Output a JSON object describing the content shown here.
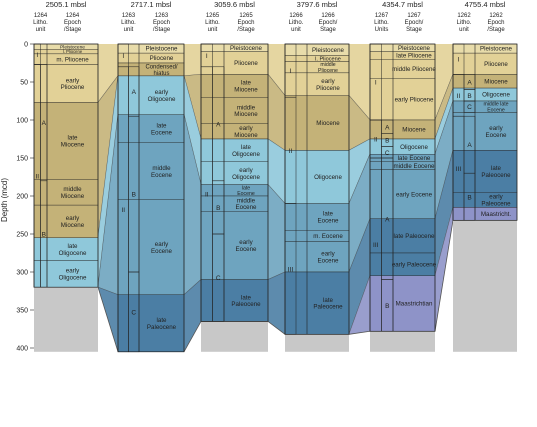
{
  "axis": {
    "label": "Depth (mcd)",
    "ticks": [
      0,
      50,
      100,
      150,
      200,
      250,
      300,
      350,
      400
    ],
    "range": [
      0,
      400
    ]
  },
  "colors": {
    "pleistocene": "#e8dcaa",
    "pliocene": "#e2d197",
    "miocene": "#c4b278",
    "oligocene": "#8fc8da",
    "eocene": "#6ea4bf",
    "paleocene": "#4b7ea4",
    "maastrichtian": "#8e93c8",
    "basement": "#c8c8c8",
    "outline": "#222222"
  },
  "sites": [
    {
      "id": "1264",
      "depth_title": "2505.1 mbsl",
      "col1_head": [
        "1264",
        "Litho.",
        "unit"
      ],
      "col2_head": [
        "1264",
        "Epoch",
        "/Stage"
      ],
      "total": 320,
      "basement_to": 405,
      "units": [
        {
          "label": "I",
          "top": 0,
          "bottom": 27,
          "level": 1
        },
        {
          "label": "II",
          "top": 27,
          "bottom": 320,
          "level": 1
        },
        {
          "label": "A",
          "top": 27,
          "bottom": 180,
          "level": 2
        },
        {
          "label": "B",
          "top": 180,
          "bottom": 320,
          "level": 2
        }
      ],
      "stages": [
        {
          "label": [
            "Pleistocene"
          ],
          "top": 0,
          "bottom": 7,
          "c": "pleistocene"
        },
        {
          "label": [
            "l. Pliocene"
          ],
          "top": 7,
          "bottom": 13,
          "c": "pliocene"
        },
        {
          "label": [
            "m. Pliocene"
          ],
          "top": 13,
          "bottom": 27,
          "c": "pliocene"
        },
        {
          "label": [
            "early",
            "Pliocene"
          ],
          "top": 27,
          "bottom": 77,
          "c": "pliocene"
        },
        {
          "label": [
            "late",
            "Miocene"
          ],
          "top": 77,
          "bottom": 178,
          "c": "miocene"
        },
        {
          "label": [
            "middle",
            "Miocene"
          ],
          "top": 178,
          "bottom": 212,
          "c": "miocene"
        },
        {
          "label": [
            "early",
            "Miocene"
          ],
          "top": 212,
          "bottom": 255,
          "c": "miocene"
        },
        {
          "label": [
            "late",
            "Oligocene"
          ],
          "top": 255,
          "bottom": 285,
          "c": "oligocene"
        },
        {
          "label": [
            "early",
            "Oligocene"
          ],
          "top": 285,
          "bottom": 320,
          "c": "oligocene"
        }
      ]
    },
    {
      "id": "1263",
      "depth_title": "2717.1 mbsl",
      "col1_head": [
        "1263",
        "Litho.",
        "unit"
      ],
      "col2_head": [
        "1263",
        "Epoch",
        "/Stage"
      ],
      "total": 405,
      "basement_to": 405,
      "units": [
        {
          "label": "I",
          "top": 0,
          "bottom": 30,
          "level": 1
        },
        {
          "label": "II",
          "top": 30,
          "bottom": 405,
          "level": 1
        },
        {
          "label": "A",
          "top": 30,
          "bottom": 95,
          "level": 2
        },
        {
          "label": "B",
          "top": 95,
          "bottom": 300,
          "level": 2
        },
        {
          "label": "C",
          "top": 300,
          "bottom": 405,
          "level": 2
        }
      ],
      "stages": [
        {
          "label": [
            "Pleistocene"
          ],
          "top": 0,
          "bottom": 12,
          "c": "pleistocene"
        },
        {
          "label": [
            "Pliocene"
          ],
          "top": 12,
          "bottom": 25,
          "c": "pliocene"
        },
        {
          "label": [
            "Condensed/",
            "hiatus"
          ],
          "top": 25,
          "bottom": 42,
          "c": "miocene"
        },
        {
          "label": [
            "early",
            "Oligocene"
          ],
          "top": 42,
          "bottom": 93,
          "c": "oligocene"
        },
        {
          "label": [
            "late",
            "Eocene"
          ],
          "top": 93,
          "bottom": 130,
          "c": "eocene"
        },
        {
          "label": [
            "middle",
            "Eocene"
          ],
          "top": 130,
          "bottom": 205,
          "c": "eocene"
        },
        {
          "label": [
            "early",
            "Eocene"
          ],
          "top": 205,
          "bottom": 330,
          "c": "eocene"
        },
        {
          "label": [
            "late",
            "Paleocene"
          ],
          "top": 330,
          "bottom": 405,
          "c": "paleocene"
        }
      ]
    },
    {
      "id": "1265",
      "depth_title": "3059.6 mbsl",
      "col1_head": [
        "1265",
        "Litho.",
        "unit"
      ],
      "col2_head": [
        "1265",
        "Epoch",
        "/Stage"
      ],
      "total": 365,
      "basement_to": 405,
      "units": [
        {
          "label": "I",
          "top": 0,
          "bottom": 30,
          "level": 1
        },
        {
          "label": "II",
          "top": 30,
          "bottom": 365,
          "level": 1
        },
        {
          "label": "A",
          "top": 30,
          "bottom": 180,
          "level": 2
        },
        {
          "label": "B",
          "top": 180,
          "bottom": 250,
          "level": 2
        },
        {
          "label": "C",
          "top": 250,
          "bottom": 365,
          "level": 2
        }
      ],
      "stages": [
        {
          "label": [
            "Pleistocene"
          ],
          "top": 0,
          "bottom": 10,
          "c": "pleistocene"
        },
        {
          "label": [
            "Pliocene"
          ],
          "top": 10,
          "bottom": 40,
          "c": "pliocene"
        },
        {
          "label": [
            "late",
            "Miocene"
          ],
          "top": 40,
          "bottom": 70,
          "c": "miocene"
        },
        {
          "label": [
            "middle",
            "Miocene"
          ],
          "top": 70,
          "bottom": 105,
          "c": "miocene"
        },
        {
          "label": [
            "early",
            "Miocene"
          ],
          "top": 105,
          "bottom": 125,
          "c": "miocene"
        },
        {
          "label": [
            "late",
            "Oligocene"
          ],
          "top": 125,
          "bottom": 155,
          "c": "oligocene"
        },
        {
          "label": [
            "early",
            "Oligocene"
          ],
          "top": 155,
          "bottom": 185,
          "c": "oligocene"
        },
        {
          "label": [
            "late",
            "Eocene"
          ],
          "top": 185,
          "bottom": 200,
          "c": "eocene"
        },
        {
          "label": [
            "middle",
            "Eocene"
          ],
          "top": 200,
          "bottom": 220,
          "c": "eocene"
        },
        {
          "label": [
            "early",
            "Eocene"
          ],
          "top": 220,
          "bottom": 310,
          "c": "eocene"
        },
        {
          "label": [
            "late",
            "Paleocene"
          ],
          "top": 310,
          "bottom": 365,
          "c": "paleocene"
        }
      ]
    },
    {
      "id": "1266",
      "depth_title": "3797.6 mbsl",
      "col1_head": [
        "1266",
        "Litho.",
        "unit"
      ],
      "col2_head": [
        "1266",
        "Epoch/",
        "Stage"
      ],
      "total": 382,
      "basement_to": 405,
      "units": [
        {
          "label": "I",
          "top": 0,
          "bottom": 70,
          "level": 1
        },
        {
          "label": "II",
          "top": 70,
          "bottom": 210,
          "level": 1
        },
        {
          "label": "III",
          "top": 210,
          "bottom": 382,
          "level": 1
        }
      ],
      "stages": [
        {
          "label": [
            "Pleistocene"
          ],
          "top": 0,
          "bottom": 15,
          "c": "pleistocene"
        },
        {
          "label": [
            "l. Pliocene"
          ],
          "top": 15,
          "bottom": 23,
          "c": "pliocene"
        },
        {
          "label": [
            "middle",
            "Pliocene"
          ],
          "top": 23,
          "bottom": 38,
          "c": "pliocene"
        },
        {
          "label": [
            "early",
            "Pliocene"
          ],
          "top": 38,
          "bottom": 68,
          "c": "pliocene"
        },
        {
          "label": [
            "Miocene"
          ],
          "top": 68,
          "bottom": 140,
          "c": "miocene"
        },
        {
          "label": [
            "Oligocene"
          ],
          "top": 140,
          "bottom": 210,
          "c": "oligocene"
        },
        {
          "label": [
            "late",
            "Eocene"
          ],
          "top": 210,
          "bottom": 245,
          "c": "eocene"
        },
        {
          "label": [
            "m. Eocene"
          ],
          "top": 245,
          "bottom": 260,
          "c": "eocene"
        },
        {
          "label": [
            "early",
            "Eocene"
          ],
          "top": 260,
          "bottom": 300,
          "c": "eocene"
        },
        {
          "label": [
            "late",
            "Paleocene"
          ],
          "top": 300,
          "bottom": 382,
          "c": "paleocene"
        }
      ]
    },
    {
      "id": "1267",
      "depth_title": "4354.7 mbsl",
      "col1_head": [
        "1267",
        "Litho.",
        "Units"
      ],
      "col2_head": [
        "1267",
        "Epoch/",
        "Stage"
      ],
      "total": 378,
      "basement_to": 405,
      "units": [
        {
          "label": "I",
          "top": 0,
          "bottom": 100,
          "level": 1
        },
        {
          "label": "II",
          "top": 100,
          "bottom": 150,
          "level": 1
        },
        {
          "label": "III",
          "top": 150,
          "bottom": 378,
          "level": 1
        },
        {
          "label": "A",
          "top": 100,
          "bottom": 118,
          "level": 2
        },
        {
          "label": "B",
          "top": 118,
          "bottom": 135,
          "level": 2
        },
        {
          "label": "C",
          "top": 135,
          "bottom": 150,
          "level": 2
        },
        {
          "label": "A",
          "top": 150,
          "bottom": 310,
          "level": 2
        },
        {
          "label": "B",
          "top": 310,
          "bottom": 378,
          "level": 2
        }
      ],
      "stages": [
        {
          "label": [
            "Pleistocene"
          ],
          "top": 0,
          "bottom": 10,
          "c": "pleistocene"
        },
        {
          "label": [
            "late Pliocene"
          ],
          "top": 10,
          "bottom": 20,
          "c": "pliocene"
        },
        {
          "label": [
            "middle Pliocene"
          ],
          "top": 20,
          "bottom": 45,
          "c": "pliocene"
        },
        {
          "label": [
            "early Pliocene"
          ],
          "top": 45,
          "bottom": 100,
          "c": "pliocene"
        },
        {
          "label": [
            "Miocene"
          ],
          "top": 100,
          "bottom": 125,
          "c": "miocene"
        },
        {
          "label": [
            "Oligocene"
          ],
          "top": 125,
          "bottom": 145,
          "c": "oligocene"
        },
        {
          "label": [
            "late Eocene"
          ],
          "top": 145,
          "bottom": 155,
          "c": "eocene"
        },
        {
          "label": [
            "middle Eocene"
          ],
          "top": 155,
          "bottom": 165,
          "c": "eocene"
        },
        {
          "label": [
            "early Eocene"
          ],
          "top": 165,
          "bottom": 230,
          "c": "eocene"
        },
        {
          "label": [
            "late Paleocene"
          ],
          "top": 230,
          "bottom": 275,
          "c": "paleocene"
        },
        {
          "label": [
            "early Paleocene"
          ],
          "top": 275,
          "bottom": 305,
          "c": "paleocene"
        },
        {
          "label": [
            "Maastrichtian"
          ],
          "top": 305,
          "bottom": 378,
          "c": "maastrichtian"
        }
      ]
    },
    {
      "id": "1262",
      "depth_title": "4755.4 mbsl",
      "col1_head": [
        "1262",
        "Litho.",
        "unit"
      ],
      "col2_head": [
        "1262",
        "Epoch",
        "/Stage"
      ],
      "total": 232,
      "basement_to": 405,
      "units": [
        {
          "label": "I",
          "top": 0,
          "bottom": 40,
          "level": 1
        },
        {
          "label": "II",
          "top": 40,
          "bottom": 95,
          "level": 1
        },
        {
          "label": "III",
          "top": 95,
          "bottom": 232,
          "level": 1
        },
        {
          "label": "A",
          "top": 40,
          "bottom": 60,
          "level": 2
        },
        {
          "label": "B",
          "top": 60,
          "bottom": 75,
          "level": 2
        },
        {
          "label": "C",
          "top": 75,
          "bottom": 90,
          "level": 2
        },
        {
          "label": "A",
          "top": 95,
          "bottom": 170,
          "level": 2
        },
        {
          "label": "B",
          "top": 170,
          "bottom": 232,
          "level": 2
        }
      ],
      "stages": [
        {
          "label": [
            "Pleistocene"
          ],
          "top": 0,
          "bottom": 12,
          "c": "pleistocene"
        },
        {
          "label": [
            "Pliocene"
          ],
          "top": 12,
          "bottom": 40,
          "c": "pliocene"
        },
        {
          "label": [
            "Miocene"
          ],
          "top": 40,
          "bottom": 58,
          "c": "miocene"
        },
        {
          "label": [
            "Oligocene"
          ],
          "top": 58,
          "bottom": 75,
          "c": "oligocene"
        },
        {
          "label": [
            "middle late",
            "Eocene"
          ],
          "top": 75,
          "bottom": 90,
          "c": "eocene"
        },
        {
          "label": [
            "early",
            "Eocene"
          ],
          "top": 90,
          "bottom": 140,
          "c": "eocene"
        },
        {
          "label": [
            "late",
            "Paleocene"
          ],
          "top": 140,
          "bottom": 195,
          "c": "paleocene"
        },
        {
          "label": [
            "early",
            "Paleocene"
          ],
          "top": 195,
          "bottom": 215,
          "c": "paleocene"
        },
        {
          "label": [
            "Maastricht."
          ],
          "top": 215,
          "bottom": 232,
          "c": "maastrichtian"
        }
      ]
    }
  ],
  "correlations": [
    {
      "c": "pliocene",
      "tops": [
        0,
        0,
        0,
        0,
        0,
        0
      ],
      "bottoms": [
        77,
        42,
        40,
        68,
        100,
        40
      ]
    },
    {
      "c": "miocene",
      "tops": [
        77,
        42,
        40,
        68,
        100,
        40
      ],
      "bottoms": [
        255,
        42,
        125,
        140,
        125,
        58
      ]
    },
    {
      "c": "oligocene",
      "tops": [
        255,
        42,
        125,
        140,
        125,
        58
      ],
      "bottoms": [
        320,
        93,
        185,
        210,
        145,
        75
      ]
    },
    {
      "c": "eocene",
      "tops": [
        320,
        93,
        185,
        210,
        145,
        75
      ],
      "bottoms": [
        320,
        330,
        310,
        300,
        230,
        140
      ]
    },
    {
      "c": "paleocene",
      "tops": [
        320,
        330,
        310,
        300,
        230,
        140
      ],
      "bottoms": [
        320,
        405,
        365,
        382,
        305,
        215
      ]
    },
    {
      "c": "maastrichtian",
      "tops": [
        320,
        405,
        365,
        382,
        305,
        215
      ],
      "bottoms": [
        320,
        405,
        365,
        382,
        378,
        232
      ]
    }
  ]
}
